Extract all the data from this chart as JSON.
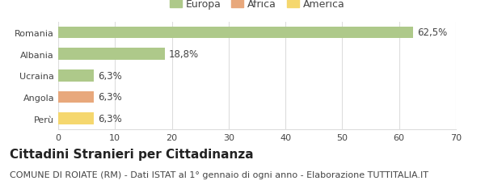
{
  "categories": [
    "Romania",
    "Albania",
    "Ucraina",
    "Angola",
    "Perù"
  ],
  "values": [
    62.5,
    18.8,
    6.3,
    6.3,
    6.3
  ],
  "bar_colors": [
    "#aec98a",
    "#aec98a",
    "#aec98a",
    "#e8a87c",
    "#f5d76e"
  ],
  "value_labels": [
    "62,5%",
    "18,8%",
    "6,3%",
    "6,3%",
    "6,3%"
  ],
  "legend_labels": [
    "Europa",
    "Africa",
    "America"
  ],
  "legend_colors": [
    "#aec98a",
    "#e8a87c",
    "#f5d76e"
  ],
  "xlim": [
    0,
    70
  ],
  "xticks": [
    0,
    10,
    20,
    30,
    40,
    50,
    60,
    70
  ],
  "title": "Cittadini Stranieri per Cittadinanza",
  "subtitle": "COMUNE DI ROIATE (RM) - Dati ISTAT al 1° gennaio di ogni anno - Elaborazione TUTTITALIA.IT",
  "title_fontsize": 11,
  "subtitle_fontsize": 8,
  "label_fontsize": 8.5,
  "tick_fontsize": 8,
  "legend_fontsize": 9,
  "background_color": "#ffffff",
  "grid_color": "#dddddd"
}
